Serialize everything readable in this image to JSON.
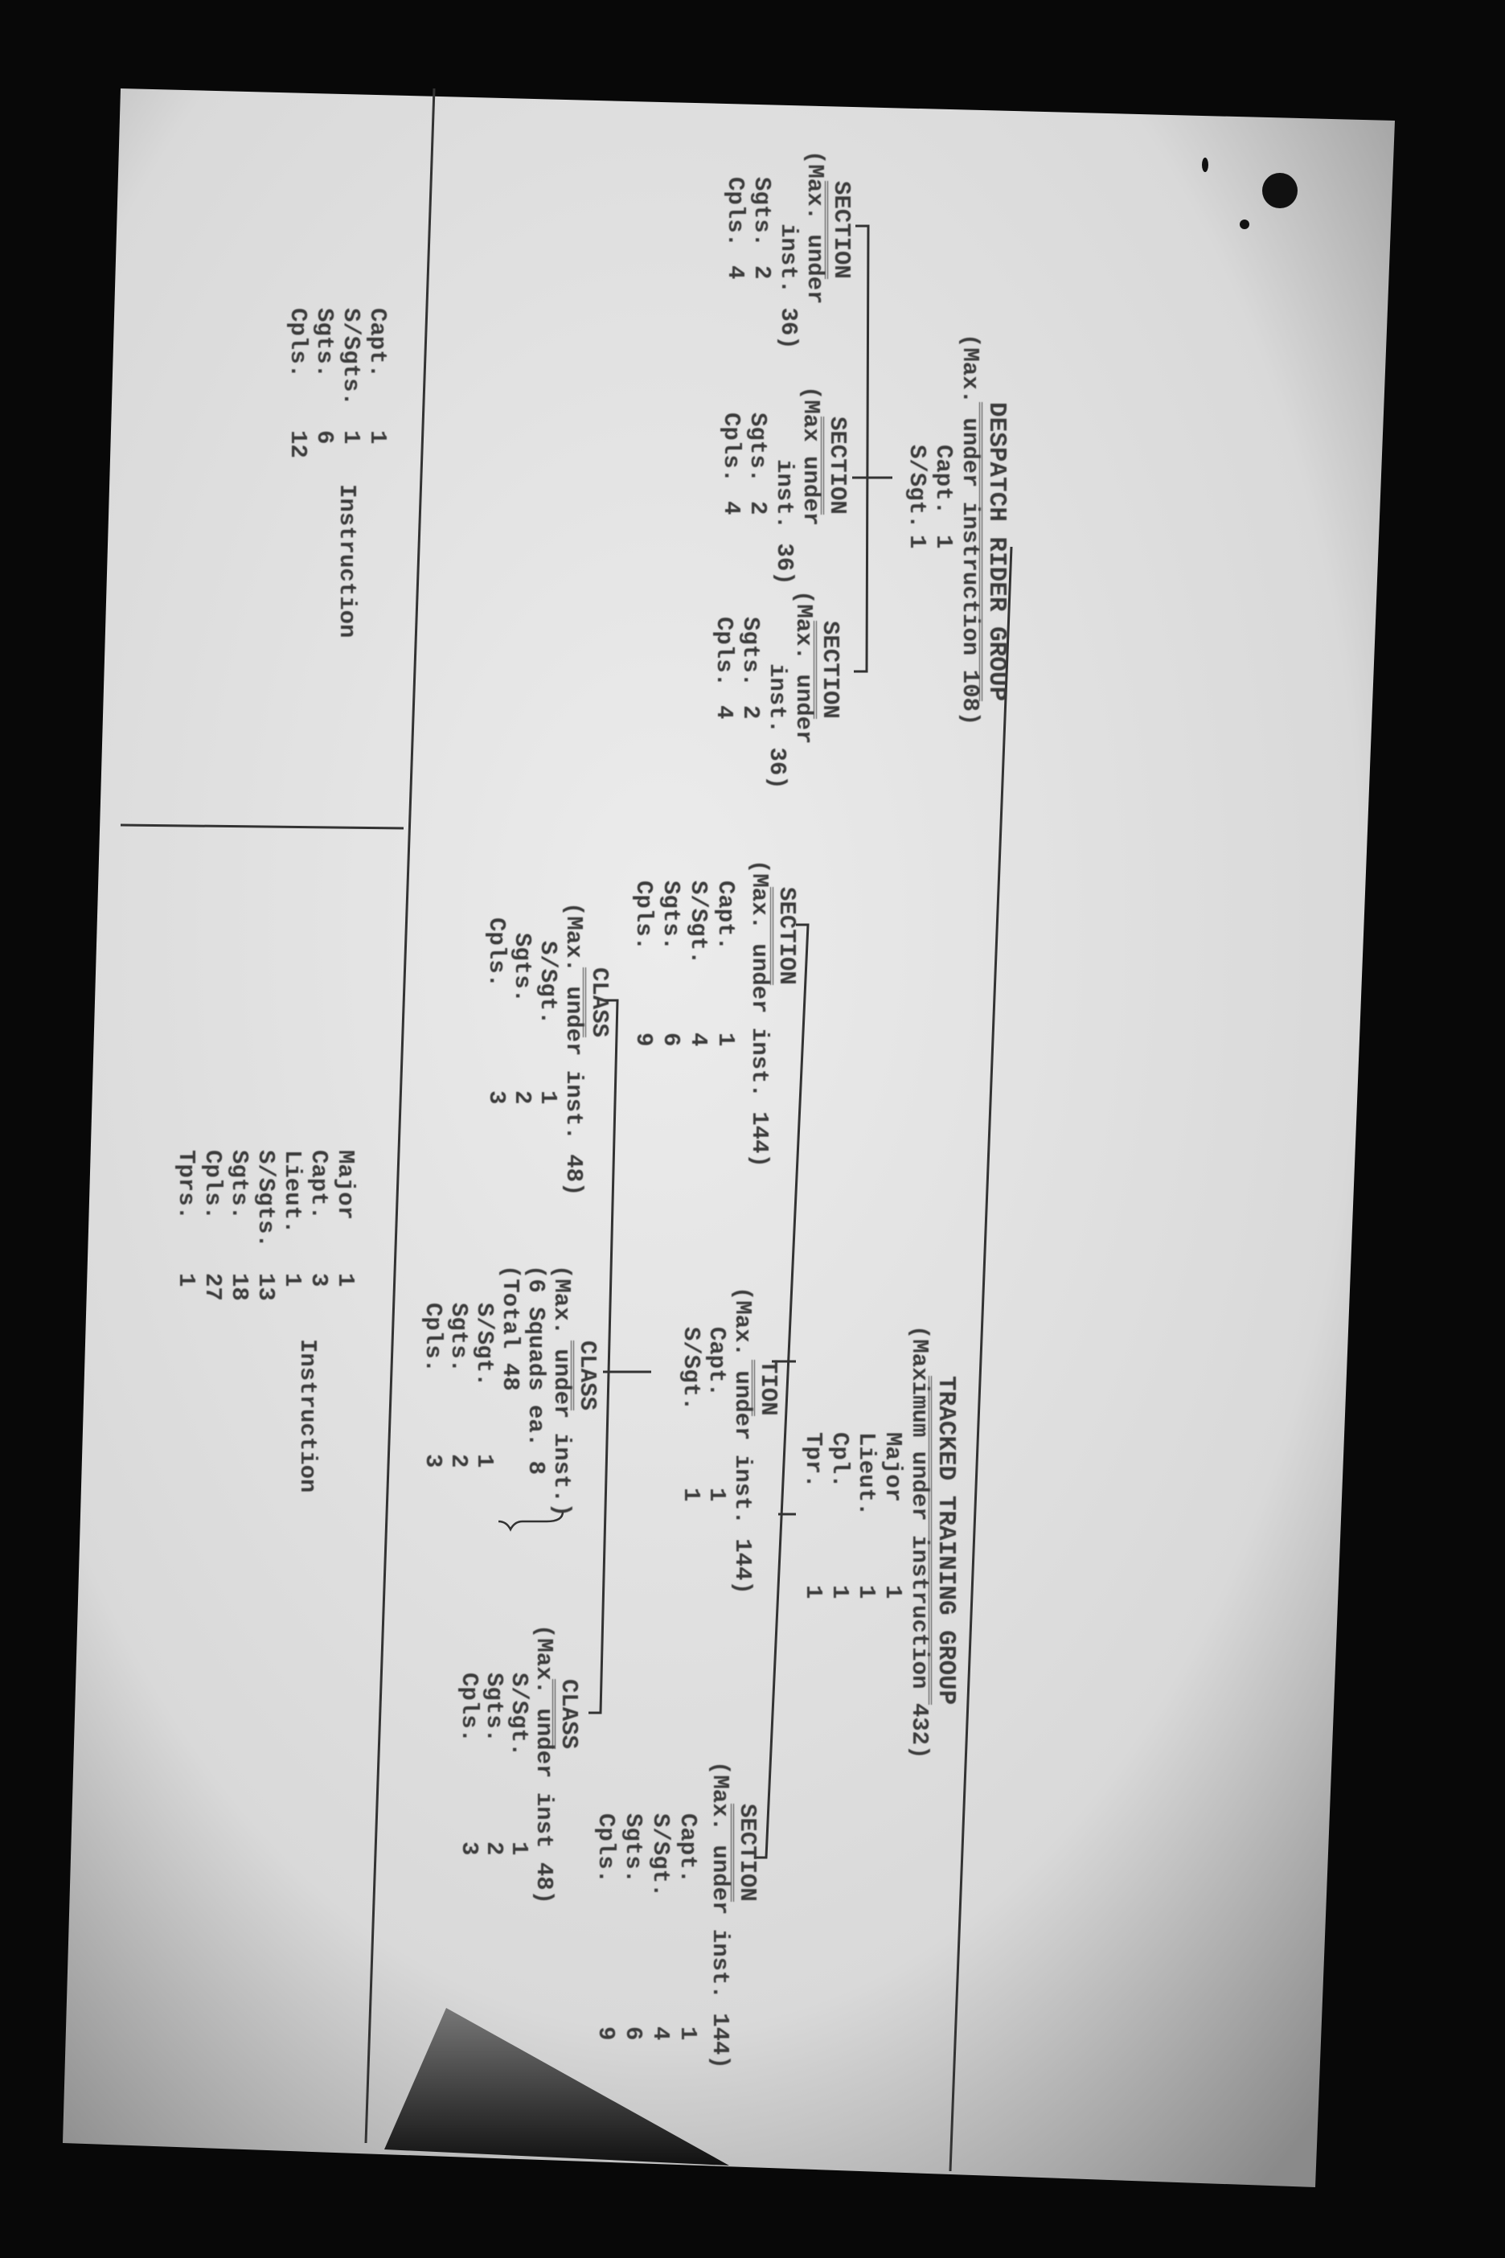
{
  "despatch_group": {
    "title": "DESPATCH RIDER GROUP",
    "subtitle": "(Max. under instruction 108)",
    "staff": [
      {
        "label": "Capt.",
        "value": "1"
      },
      {
        "label": "S/Sgt.",
        "value": "1"
      }
    ],
    "sections": [
      {
        "title": "SECTION",
        "note1": "(Max. under",
        "note2": "inst. 36)",
        "staff": [
          {
            "label": "Sgts.",
            "value": "2"
          },
          {
            "label": "Cpls.",
            "value": "4"
          }
        ]
      },
      {
        "title": "SECTION",
        "note1": "(Max under",
        "note2": "inst. 36)",
        "staff": [
          {
            "label": "Sgts.",
            "value": "2"
          },
          {
            "label": "Cpls.",
            "value": "4"
          }
        ]
      },
      {
        "title": "SECTION",
        "note1": "(Max. under",
        "note2": "inst. 36)",
        "staff": [
          {
            "label": "Sgts.",
            "value": "2"
          },
          {
            "label": "Cpls.",
            "value": "4"
          }
        ]
      }
    ],
    "instruction": {
      "label": "Instruction",
      "staff": [
        {
          "label": "Capt.",
          "value": "1"
        },
        {
          "label": "S/Sgts.",
          "value": "1"
        },
        {
          "label": "Sgts.",
          "value": "6"
        },
        {
          "label": "Cpls.",
          "value": "12"
        }
      ]
    }
  },
  "tracked_group": {
    "title": "TRACKED TRAINING GROUP",
    "subtitle": "(Maximum under instruction 432)",
    "staff": [
      {
        "label": "Major",
        "value": "1"
      },
      {
        "label": "Lieut.",
        "value": "1"
      },
      {
        "label": "Cpl.",
        "value": "1"
      },
      {
        "label": "Tpr.",
        "value": "1"
      }
    ],
    "section_left": {
      "title": "SECTION",
      "note": "(Max. under inst. 144)",
      "staff": [
        {
          "label": "Capt.",
          "value": "1"
        },
        {
          "label": "S/Sgt.",
          "value": "4"
        },
        {
          "label": "Sgts.",
          "value": "6"
        },
        {
          "label": "Cpls.",
          "value": "9"
        }
      ]
    },
    "class_left": {
      "title": "CLASS",
      "note": "(Max. under inst. 48)",
      "staff": [
        {
          "label": "S/Sgt.",
          "value": "1"
        },
        {
          "label": "Sgts.",
          "value": "2"
        },
        {
          "label": "Cpls.",
          "value": "3"
        }
      ]
    },
    "tion": {
      "title": "TION",
      "note": "(Max. under inst. 144)",
      "staff": [
        {
          "label": "Capt.",
          "value": "1"
        },
        {
          "label": "S/Sgt.",
          "value": "1"
        }
      ]
    },
    "class_middle": {
      "title": "CLASS",
      "note1": "(Max. under inst.)",
      "note2": "(6 Squads ea. 8",
      "note3": "(Total 48",
      "staff": [
        {
          "label": "S/Sgt.",
          "value": "1"
        },
        {
          "label": "Sgts.",
          "value": "2"
        },
        {
          "label": "Cpls.",
          "value": "3"
        }
      ]
    },
    "class_right": {
      "title": "CLASS",
      "note": "(Max. under inst 48)",
      "staff": [
        {
          "label": "S/Sgt.",
          "value": "1"
        },
        {
          "label": "Sgts.",
          "value": "2"
        },
        {
          "label": "Cpls.",
          "value": "3"
        }
      ]
    },
    "section_right": {
      "title": "SECTION",
      "note": "(Max. under inst. 144)",
      "staff": [
        {
          "label": "Capt.",
          "value": "1"
        },
        {
          "label": "S/Sgt.",
          "value": "4"
        },
        {
          "label": "Sgts.",
          "value": "6"
        },
        {
          "label": "Cpls.",
          "value": "9"
        }
      ]
    },
    "instruction": {
      "label": "Instruction",
      "staff": [
        {
          "label": "Major",
          "value": "1"
        },
        {
          "label": "Capt.",
          "value": "3"
        },
        {
          "label": "Lieut.",
          "value": "1"
        },
        {
          "label": "S/Sgts.",
          "value": "13"
        },
        {
          "label": "Sgts.",
          "value": "18"
        },
        {
          "label": "Cpls.",
          "value": "27"
        },
        {
          "label": "Tprs.",
          "value": "1"
        }
      ]
    }
  },
  "colors": {
    "background": "#080808",
    "paper": "#e4e4e4",
    "ink": "#3b3b3b"
  }
}
